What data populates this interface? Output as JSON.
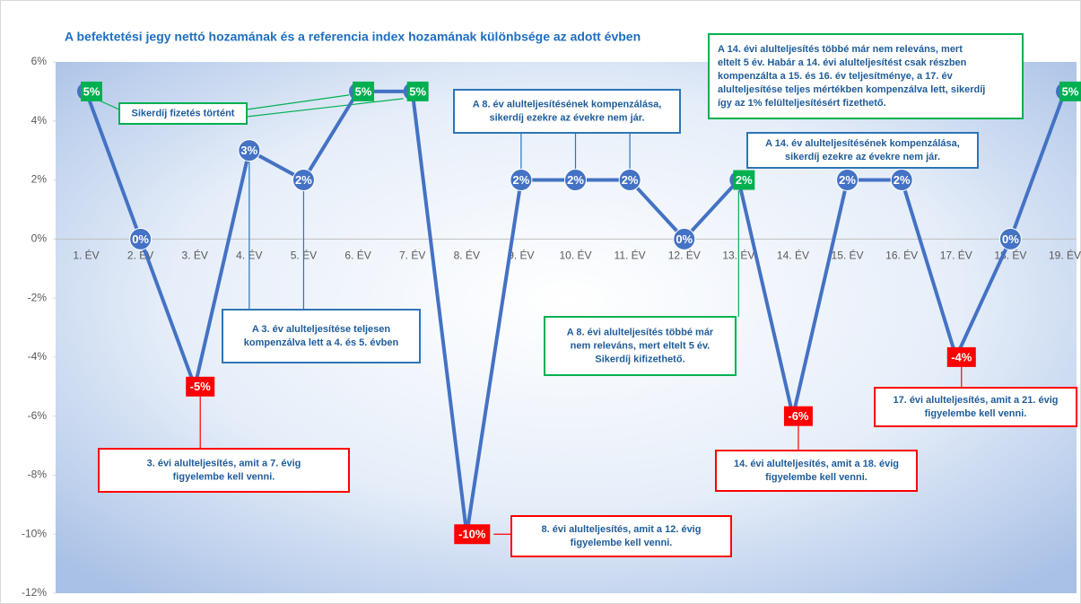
{
  "chart_data": {
    "type": "line",
    "title": "A befektetési jegy nettó hozamának és a referencia index hozamának különbsége az adott évben",
    "categories": [
      "1. ÉV",
      "2. ÉV",
      "3. ÉV",
      "4. ÉV",
      "5. ÉV",
      "6. ÉV",
      "7. ÉV",
      "8. ÉV",
      "9. ÉV",
      "10. ÉV",
      "11. ÉV",
      "12. ÉV",
      "13. ÉV",
      "14. ÉV",
      "15. ÉV",
      "16. ÉV",
      "17. ÉV",
      "18. ÉV",
      "19. ÉV"
    ],
    "series": [
      {
        "color": "#4472c4",
        "values": [
          5,
          0,
          -5,
          3,
          2,
          5,
          5,
          -10,
          2,
          2,
          2,
          0,
          2,
          -6,
          2,
          2,
          -4,
          0,
          5
        ],
        "value_labels": [
          "5%",
          "0%",
          "-5%",
          "3%",
          "2%",
          "5%",
          "5%",
          "-10%",
          "2%",
          "2%",
          "2%",
          "0%",
          "2%",
          "-6%",
          "2%",
          "2%",
          "-4%",
          "0%",
          "5%"
        ],
        "label_colors": [
          "#00b050",
          "#4472c4",
          "#ff0000",
          "#4472c4",
          "#4472c4",
          "#00b050",
          "#00b050",
          "#ff0000",
          "#4472c4",
          "#4472c4",
          "#4472c4",
          "#4472c4",
          "#00b050",
          "#ff0000",
          "#4472c4",
          "#4472c4",
          "#ff0000",
          "#4472c4",
          "#00b050"
        ]
      }
    ],
    "ylim": [
      -12,
      6
    ],
    "yticks": [
      {
        "value": -12,
        "label": "-12%"
      },
      {
        "value": -10,
        "label": "-10%"
      },
      {
        "value": -8,
        "label": "-8%"
      },
      {
        "value": -6,
        "label": "-6%"
      },
      {
        "value": -4,
        "label": "-4%"
      },
      {
        "value": -2,
        "label": "-2%"
      },
      {
        "value": 0,
        "label": "0%"
      },
      {
        "value": 2,
        "label": "2%"
      },
      {
        "value": 4,
        "label": "4%"
      },
      {
        "value": 6,
        "label": "6%"
      }
    ],
    "annotations": [
      {
        "color": "#00b050",
        "lines": [
          "Sikerdíj fizetés történt"
        ]
      },
      {
        "color": "#2e75b6",
        "lines": [
          "A 8. év alulteljesítésének kompenzálása,",
          "sikerdíj ezekre az évekre nem jár."
        ]
      },
      {
        "color": "#00b050",
        "lines": [
          "A 14. évi alulteljesítés többé  már nem releváns, mert",
          "eltelt 5 év. Habár a 14. évi alulteljesítést csak részben",
          "kompenzálta a 15. és 16. év teljesítménye, a 17. év",
          "alulteljesítése teljes mértékben kompenzálva lett, sikerdíj",
          "így az 1% felülteljesítésért fizethető."
        ]
      },
      {
        "color": "#2e75b6",
        "lines": [
          "A 14. év alulteljesítésének kompenzálása,",
          "sikerdíj ezekre az évekre nem jár."
        ]
      },
      {
        "color": "#2e75b6",
        "lines": [
          "A 3. év alulteljesítése teljesen",
          "kompenzálva lett a 4. és 5. évben"
        ]
      },
      {
        "color": "#00b050",
        "lines": [
          "A 8. évi alulteljesítés többé  már",
          "nem releváns, mert eltelt 5 év.",
          "Sikerdíj kifizethető."
        ]
      },
      {
        "color": "#ff0000",
        "lines": [
          "3. évi alulteljesítés, amit a 7. évig",
          "figyelembe kell venni."
        ]
      },
      {
        "color": "#ff0000",
        "lines": [
          "8. évi alulteljesítés, amit a 12. évig",
          "figyelembe kell venni."
        ]
      },
      {
        "color": "#ff0000",
        "lines": [
          "14. évi alulteljesítés, amit a 18. évig",
          "figyelembe kell venni."
        ]
      },
      {
        "color": "#ff0000",
        "lines": [
          "17. évi alulteljesítés, amit a 21. évig",
          "figyelembe kell venni."
        ]
      }
    ]
  }
}
